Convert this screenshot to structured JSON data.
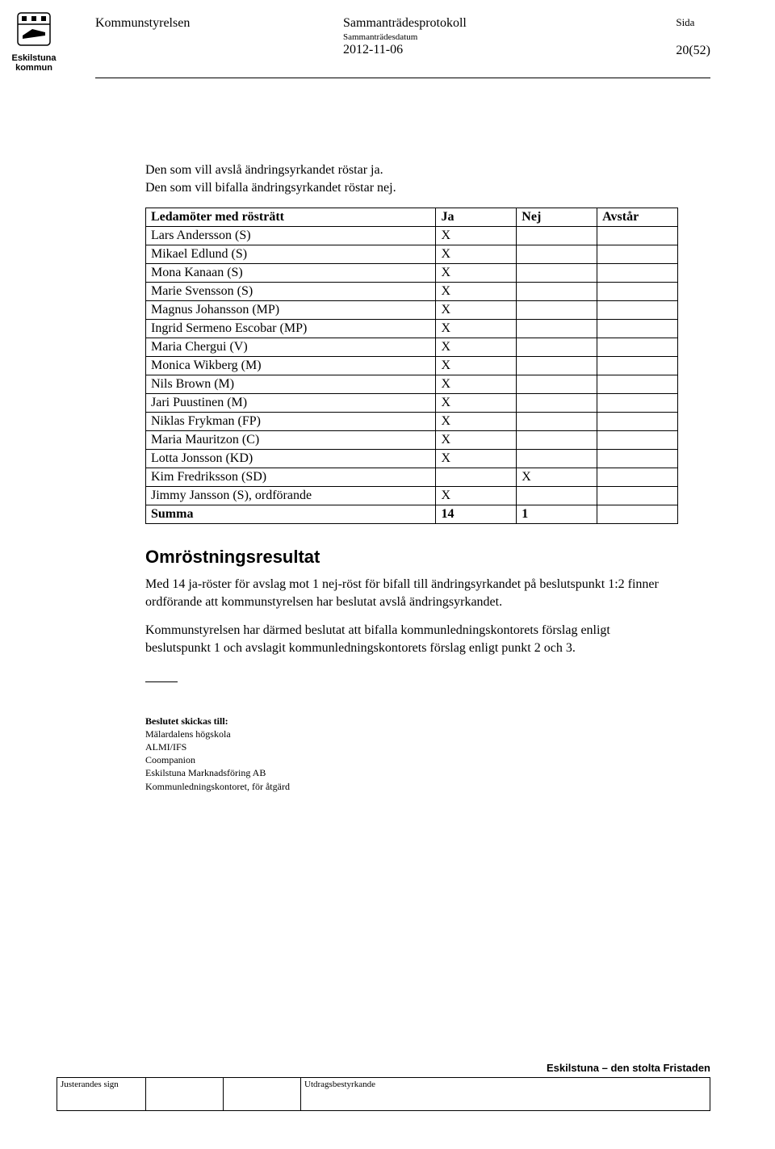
{
  "header": {
    "org_lines": [
      "Eskilstuna",
      "kommun"
    ],
    "left_title": "Kommunstyrelsen",
    "mid_title": "Sammanträdesprotokoll",
    "mid_sub": "Sammanträdesdatum",
    "mid_date": "2012-11-06",
    "right_label": "Sida",
    "right_page": "20(52)"
  },
  "intro": {
    "line1": "Den som vill avslå ändringsyrkandet röstar ja.",
    "line2": "Den som vill bifalla ändringsyrkandet röstar nej."
  },
  "voting": {
    "columns": [
      "Ledamöter med rösträtt",
      "Ja",
      "Nej",
      "Avstår"
    ],
    "rows": [
      {
        "name": "Lars Andersson  (S)",
        "ja": "X",
        "nej": "",
        "avstar": ""
      },
      {
        "name": "Mikael Edlund (S)",
        "ja": "X",
        "nej": "",
        "avstar": ""
      },
      {
        "name": "Mona Kanaan (S)",
        "ja": "X",
        "nej": "",
        "avstar": ""
      },
      {
        "name": "Marie Svensson (S)",
        "ja": "X",
        "nej": "",
        "avstar": ""
      },
      {
        "name": "Magnus Johansson (MP)",
        "ja": "X",
        "nej": "",
        "avstar": ""
      },
      {
        "name": "Ingrid Sermeno Escobar (MP)",
        "ja": "X",
        "nej": "",
        "avstar": ""
      },
      {
        "name": "Maria Chergui (V)",
        "ja": "X",
        "nej": "",
        "avstar": ""
      },
      {
        "name": "Monica Wikberg (M)",
        "ja": "X",
        "nej": "",
        "avstar": ""
      },
      {
        "name": "Nils Brown (M)",
        "ja": "X",
        "nej": "",
        "avstar": ""
      },
      {
        "name": "Jari Puustinen (M)",
        "ja": "X",
        "nej": "",
        "avstar": ""
      },
      {
        "name": "Niklas Frykman (FP)",
        "ja": "X",
        "nej": "",
        "avstar": ""
      },
      {
        "name": "Maria Mauritzon (C)",
        "ja": "X",
        "nej": "",
        "avstar": ""
      },
      {
        "name": "Lotta Jonsson  (KD)",
        "ja": "X",
        "nej": "",
        "avstar": ""
      },
      {
        "name": "Kim Fredriksson (SD)",
        "ja": "",
        "nej": "X",
        "avstar": ""
      },
      {
        "name": "Jimmy Jansson (S), ordförande",
        "ja": "X",
        "nej": "",
        "avstar": ""
      }
    ],
    "summary": {
      "label": "Summa",
      "ja": "14",
      "nej": "1",
      "avstar": ""
    }
  },
  "result": {
    "heading": "Omröstningsresultat",
    "para1": "Med 14 ja-röster för avslag mot 1 nej-röst för bifall till ändringsyrkandet på beslutspunkt 1:2 finner ordförande att kommunstyrelsen har beslutat avslå ändringsyrkandet.",
    "para2": "Kommunstyrelsen har därmed beslutat att bifalla kommunledningskontorets förslag enligt beslutspunkt 1 och avslagit kommunledningskontorets förslag enligt punkt 2 och 3."
  },
  "distribution": {
    "lead": "Beslutet skickas till:",
    "lines": [
      "Mälardalens högskola",
      "ALMI/IFS",
      "Coompanion",
      "Eskilstuna Marknadsföring AB",
      "Kommunledningskontoret, för åtgärd"
    ]
  },
  "footer": {
    "tagline": "Eskilstuna – den stolta Fristaden",
    "box_a": "Justerandes sign",
    "box_d": "Utdragsbestyrkande"
  }
}
